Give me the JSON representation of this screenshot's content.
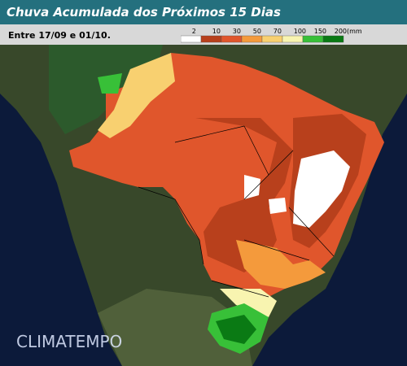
{
  "header": {
    "title": "Chuva Acumulada dos Próximos 15 Dias",
    "period": "Entre 17/09 e 01/10."
  },
  "legend": {
    "items": [
      {
        "label": "2",
        "color": "#ffffff"
      },
      {
        "label": "10",
        "color": "#b8401c"
      },
      {
        "label": "30",
        "color": "#e0562c"
      },
      {
        "label": "50",
        "color": "#f49a3c"
      },
      {
        "label": "70",
        "color": "#f8d070"
      },
      {
        "label": "100",
        "color": "#f8f4b0"
      },
      {
        "label": "150",
        "color": "#38c038"
      },
      {
        "label": "200(mm)",
        "color": "#0a7a14"
      }
    ]
  },
  "watermark": "CLIMATEMPO"
}
